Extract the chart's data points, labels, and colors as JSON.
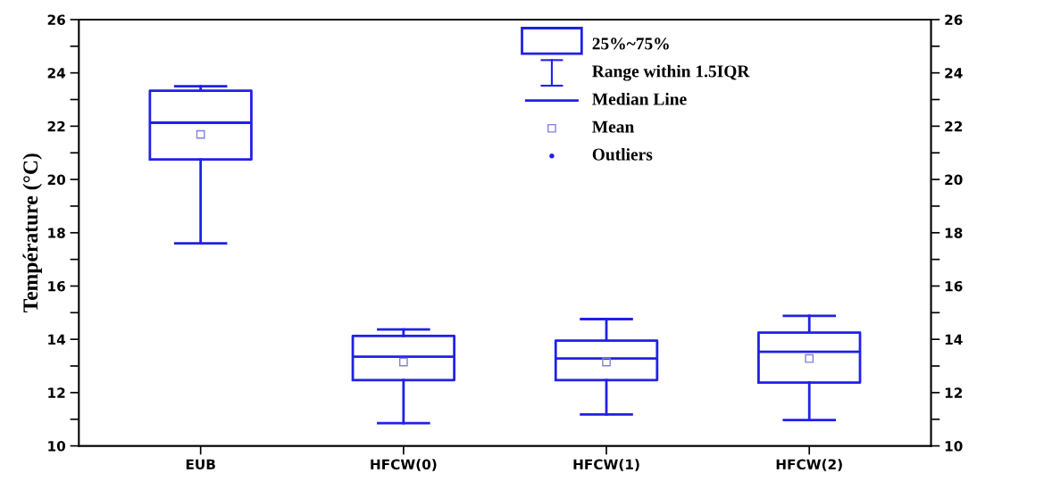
{
  "chart_data": {
    "type": "box",
    "ylabel": "Température (°C)",
    "categories": [
      "EUB",
      "HFCW(0)",
      "HFCW(1)",
      "HFCW(2)"
    ],
    "boxes": [
      {
        "low": 17.6,
        "q1": 20.75,
        "median": 22.13,
        "q3": 23.33,
        "high": 23.5,
        "mean": 21.69
      },
      {
        "low": 10.85,
        "q1": 12.47,
        "median": 13.35,
        "q3": 14.13,
        "high": 14.37,
        "mean": 13.15
      },
      {
        "low": 11.18,
        "q1": 12.47,
        "median": 13.28,
        "q3": 13.95,
        "high": 14.76,
        "mean": 13.15
      },
      {
        "low": 10.97,
        "q1": 12.38,
        "median": 13.53,
        "q3": 14.25,
        "high": 14.88,
        "mean": 13.28
      }
    ],
    "color": "#2020e8",
    "ylim": [
      10,
      26
    ],
    "yticks": [
      10,
      {
        "value": 11,
        "label": null
      },
      12,
      {
        "value": 13,
        "label": null
      },
      14,
      {
        "value": 15,
        "label": null
      },
      16,
      {
        "value": 17,
        "label": null
      },
      18,
      {
        "value": 19,
        "label": null
      },
      20,
      {
        "value": 21,
        "label": null
      },
      22,
      {
        "value": 23,
        "label": null
      },
      24,
      {
        "value": 25,
        "label": null
      },
      26
    ],
    "y2lim": [
      10,
      26
    ],
    "y2ticks": [
      10,
      {
        "value": 11,
        "label": null
      },
      12,
      {
        "value": 13,
        "label": null
      },
      14,
      {
        "value": 15,
        "label": null
      },
      16,
      {
        "value": 17,
        "label": null
      },
      18,
      {
        "value": 19,
        "label": null
      },
      20,
      {
        "value": 21,
        "label": null
      },
      22,
      {
        "value": 23,
        "label": null
      },
      24,
      {
        "value": 25,
        "label": null
      },
      26
    ],
    "grid": false,
    "annotations": [
      "25%~75%",
      "Range within 1.5IQR",
      "Median Line",
      "Mean",
      "Outliers"
    ]
  }
}
